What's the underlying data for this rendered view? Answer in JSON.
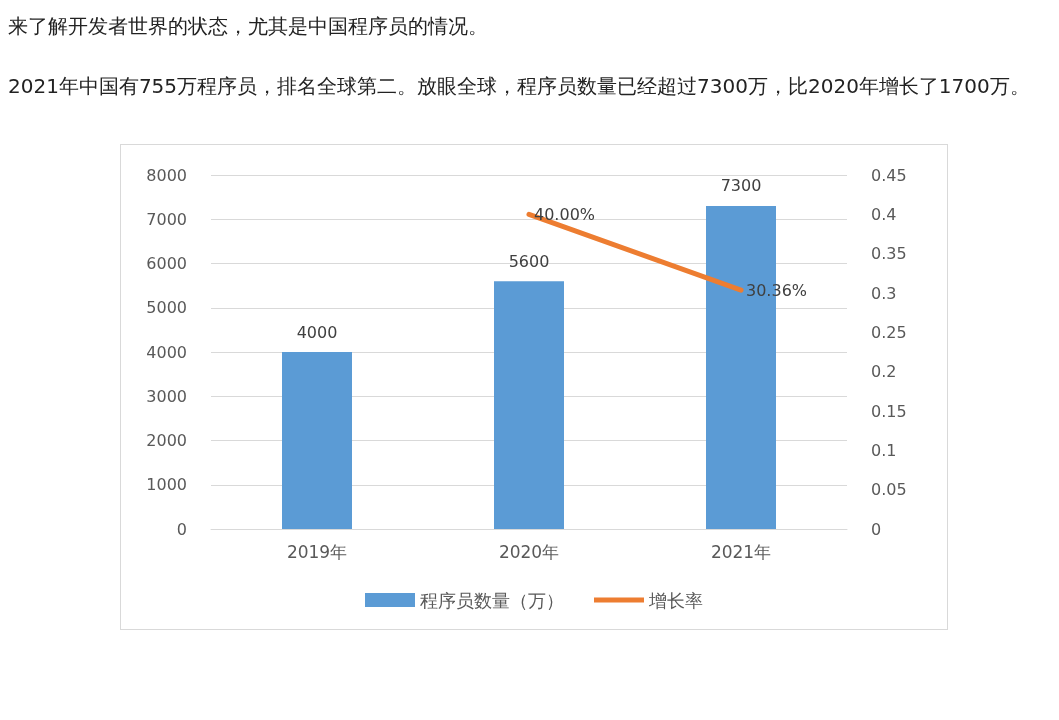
{
  "chart_data": {
    "type": "bar",
    "annotations": [
      "来了解开发者世界的状态，尤其是中国程序员的情况。",
      "2021年中国有755万程序员，排名全球第二。放眼全球，程序员数量已经超过7300万，比2020年增长了1700万。"
    ],
    "categories": [
      "2019年",
      "2020年",
      "2021年"
    ],
    "series": [
      {
        "name": "程序员数量（万）",
        "color": "#5b9bd5",
        "values": [
          4000,
          5600,
          7300
        ]
      },
      {
        "name": "增长率",
        "type": "line",
        "axis": "y2",
        "color": "#ed7d31",
        "values": [
          null,
          0.4,
          0.3036
        ],
        "value_labels": [
          null,
          "40.00%",
          "30.36%"
        ]
      }
    ],
    "data_labels": true,
    "ylim": [
      0,
      8000
    ],
    "yticks": [
      0,
      1000,
      2000,
      3000,
      4000,
      5000,
      6000,
      7000,
      8000
    ],
    "y2lim": [
      0,
      0.45
    ],
    "y2ticks": [
      0,
      0.05,
      0.1,
      0.15,
      0.2,
      0.25,
      0.3,
      0.35,
      0.4,
      0.45
    ],
    "grid": "y",
    "legend": "bottom",
    "marker": "none",
    "line_style": "solid"
  }
}
